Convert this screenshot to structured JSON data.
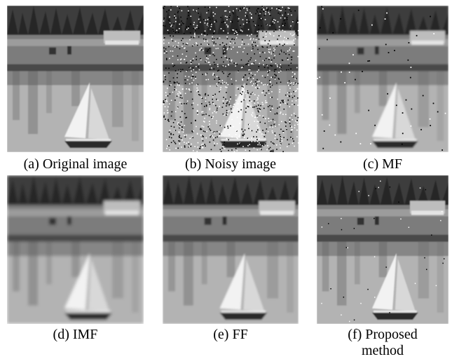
{
  "figure": {
    "panels": [
      {
        "caption": "(a) Original image"
      },
      {
        "caption": "(b) Noisy image"
      },
      {
        "caption": "(c) MF"
      },
      {
        "caption": "(d) IMF"
      },
      {
        "caption": "(e) FF"
      },
      {
        "caption": "(f) Proposed method"
      }
    ]
  }
}
